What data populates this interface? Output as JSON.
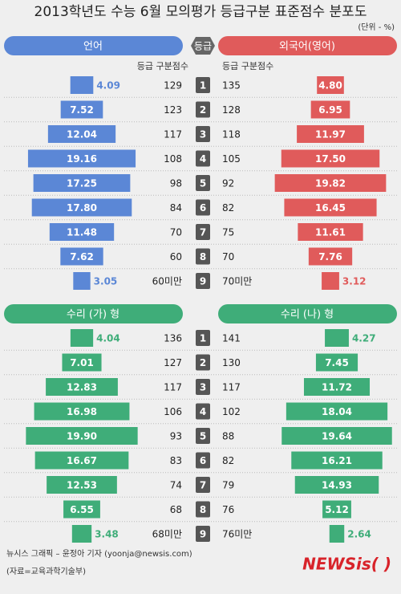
{
  "title": "2013학년도 수능 6월 모의평가 등급구분 표준점수 분포도",
  "unit": "(단위 - %)",
  "grade_header": "등급",
  "column_header": "등급 구분점수",
  "chart_data": [
    {
      "type": "bar",
      "categories": [
        "1",
        "2",
        "3",
        "4",
        "5",
        "6",
        "7",
        "8",
        "9"
      ],
      "series": [
        {
          "name": "언어",
          "color": "#5b87d6",
          "values": [
            4.09,
            7.52,
            12.04,
            19.16,
            17.25,
            17.8,
            11.48,
            7.62,
            3.05
          ],
          "value_labels": [
            "4.09",
            "7.52",
            "12.04",
            "19.16",
            "17.25",
            "17.80",
            "11.48",
            "7.62",
            "3.05"
          ],
          "scores": [
            129,
            123,
            117,
            108,
            98,
            84,
            70,
            60,
            "60미만"
          ]
        },
        {
          "name": "외국어(영어)",
          "color": "#e05b5b",
          "values": [
            4.8,
            6.95,
            11.97,
            17.5,
            19.82,
            16.45,
            11.61,
            7.76,
            3.12
          ],
          "value_labels": [
            "4.80",
            "6.95",
            "11.97",
            "17.50",
            "19.82",
            "16.45",
            "11.61",
            "7.76",
            "3.12"
          ],
          "scores": [
            135,
            128,
            118,
            105,
            92,
            82,
            75,
            70,
            "70미만"
          ]
        }
      ]
    },
    {
      "type": "bar",
      "categories": [
        "1",
        "2",
        "3",
        "4",
        "5",
        "6",
        "7",
        "8",
        "9"
      ],
      "series": [
        {
          "name": "수리 (가) 형",
          "color": "#3fad79",
          "values": [
            4.04,
            7.01,
            12.83,
            16.98,
            19.9,
            16.67,
            12.53,
            6.55,
            3.48
          ],
          "value_labels": [
            "4.04",
            "7.01",
            "12.83",
            "16.98",
            "19.90",
            "16.67",
            "12.53",
            "6.55",
            "3.48"
          ],
          "scores": [
            136,
            127,
            117,
            106,
            93,
            83,
            74,
            68,
            "68미만"
          ]
        },
        {
          "name": "수리 (나) 형",
          "color": "#3fad79",
          "values": [
            4.27,
            7.45,
            11.72,
            18.04,
            19.64,
            16.21,
            14.93,
            5.12,
            2.64
          ],
          "value_labels": [
            "4.27",
            "7.45",
            "11.72",
            "18.04",
            "19.64",
            "16.21",
            "14.93",
            "5.12",
            "2.64"
          ],
          "scores": [
            141,
            130,
            117,
            102,
            88,
            82,
            79,
            76,
            "76미만"
          ]
        }
      ]
    }
  ],
  "footer": {
    "credit": "뉴시스 그래픽 – 윤정아 기자 (yoonja@newsis.com)",
    "source": "(자료=교육과학기술부)",
    "logo": "NEWSis( )"
  }
}
